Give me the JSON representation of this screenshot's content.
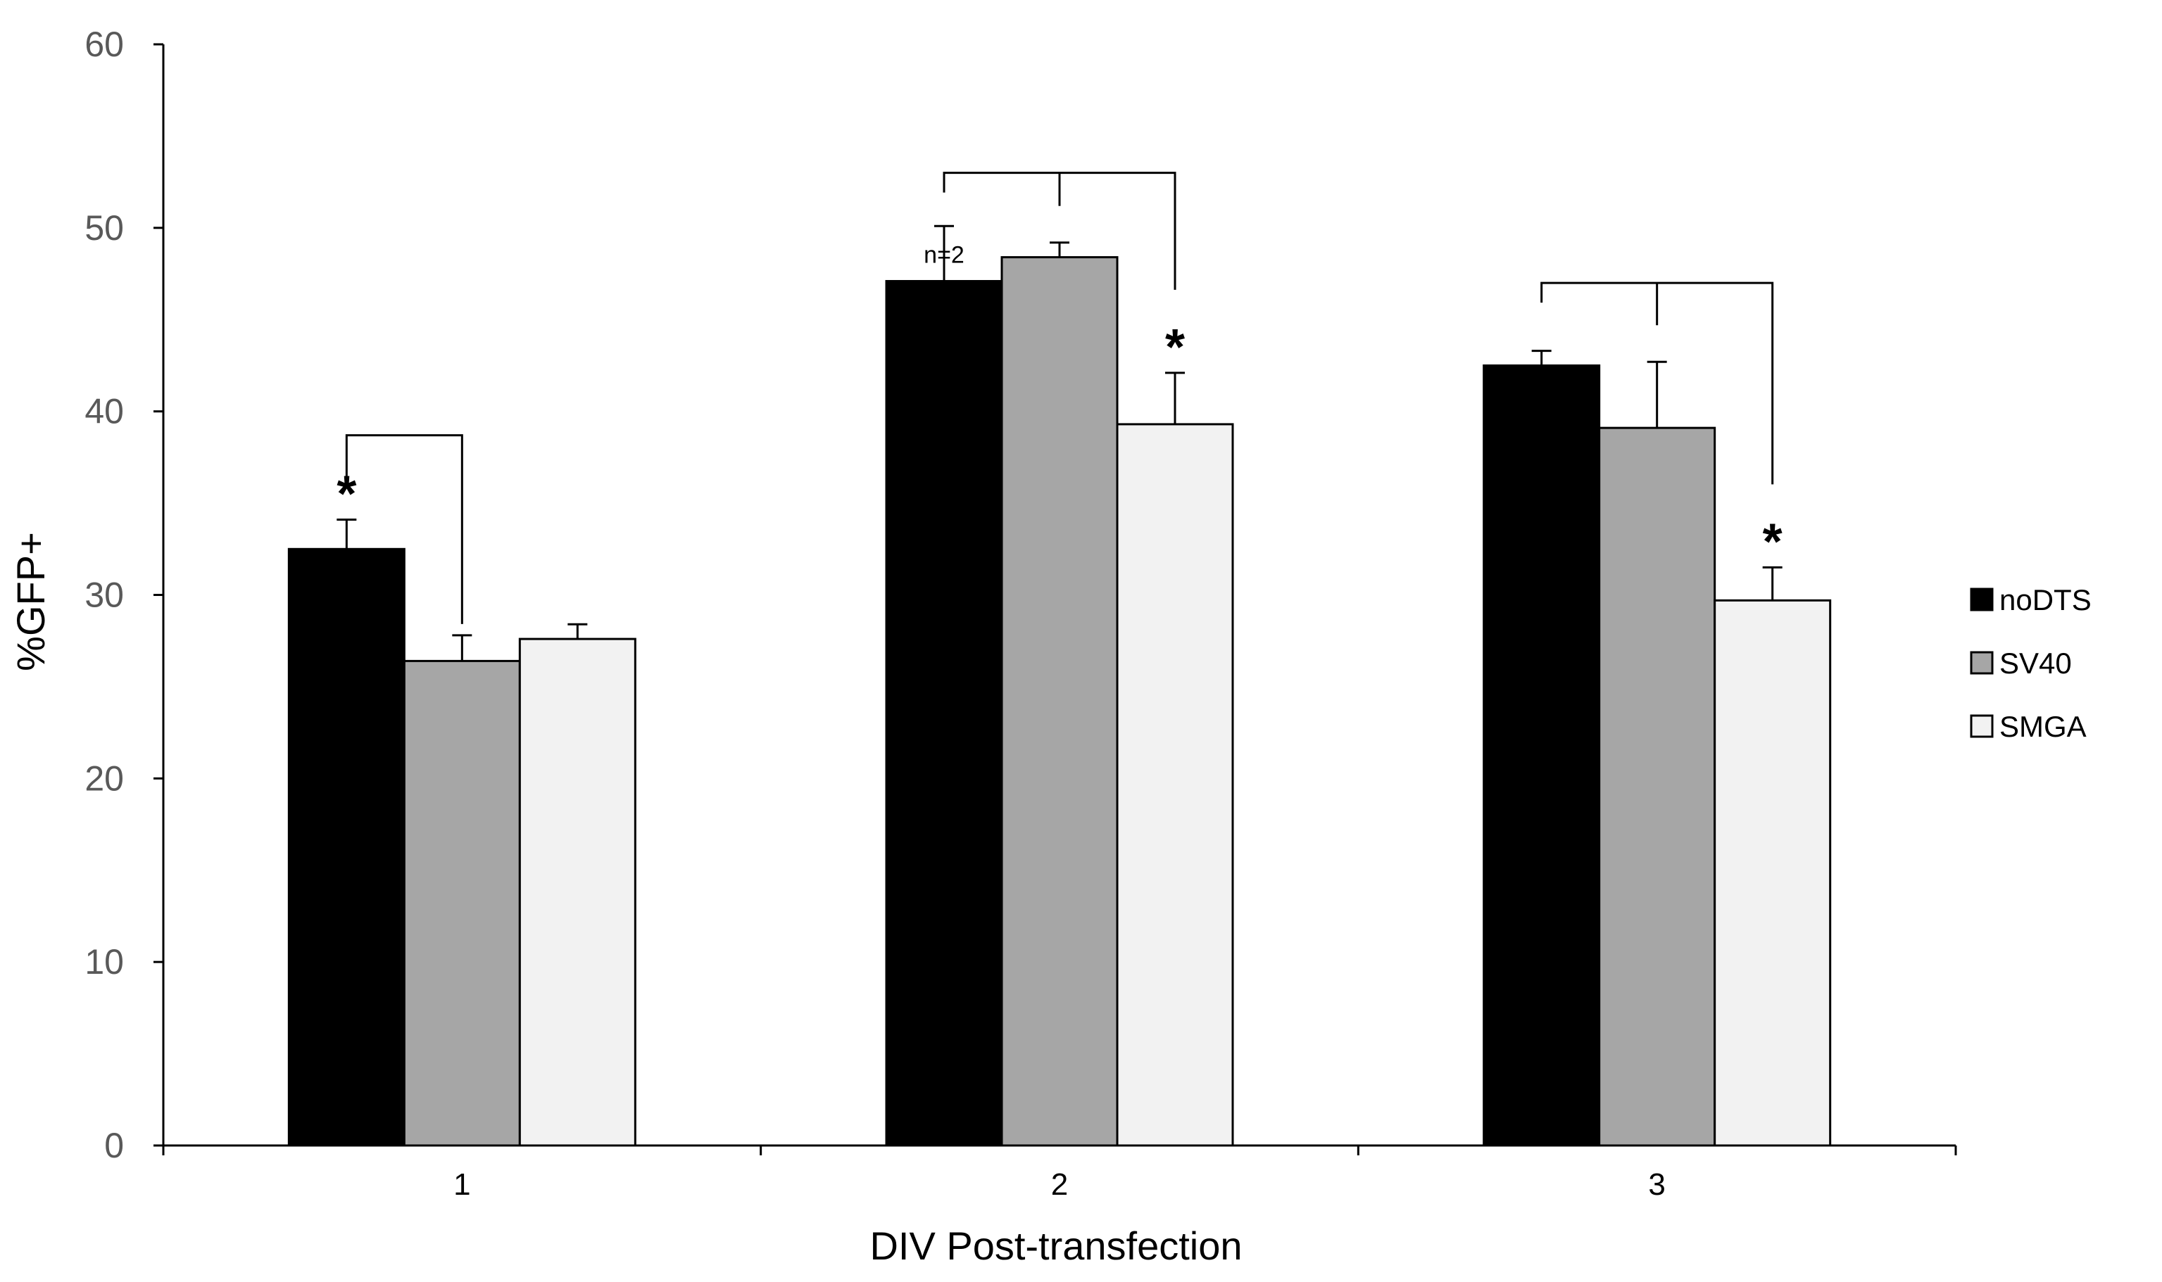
{
  "chart_data": {
    "type": "bar",
    "title": "",
    "xlabel": "DIV Post-transfection",
    "ylabel": "%GFP+",
    "categories": [
      "1",
      "2",
      "3"
    ],
    "ylim": [
      0,
      60
    ],
    "yticks": [
      0,
      10,
      20,
      30,
      40,
      50,
      60
    ],
    "grid": false,
    "legend_position": "right",
    "series": [
      {
        "name": "noDTS",
        "color": "#000000",
        "values": [
          32.5,
          47.1,
          42.5
        ],
        "errors": [
          1.6,
          3.0,
          0.8
        ]
      },
      {
        "name": "SV40",
        "color": "#a6a6a6",
        "values": [
          26.4,
          48.4,
          39.1
        ],
        "errors": [
          1.4,
          0.8,
          3.6
        ]
      },
      {
        "name": "SMGA",
        "color": "#f2f2f2",
        "values": [
          27.6,
          39.3,
          29.7
        ],
        "errors": [
          0.8,
          2.8,
          1.8
        ]
      }
    ],
    "annotations": {
      "significance_marker": "*",
      "significant_bars": [
        {
          "category_index": 0,
          "series_index": 0
        },
        {
          "category_index": 1,
          "series_index": 2
        },
        {
          "category_index": 2,
          "series_index": 2
        }
      ],
      "brackets": [
        {
          "category_index": 0,
          "type": "pair",
          "from_series": 0,
          "to_series": 1,
          "level": 38.7
        },
        {
          "category_index": 1,
          "type": "group",
          "level": 53.0
        },
        {
          "category_index": 2,
          "type": "group",
          "level": 47.0
        }
      ],
      "notes": [
        {
          "text": "n=2",
          "category_index": 1,
          "series_index": 0
        }
      ]
    }
  }
}
